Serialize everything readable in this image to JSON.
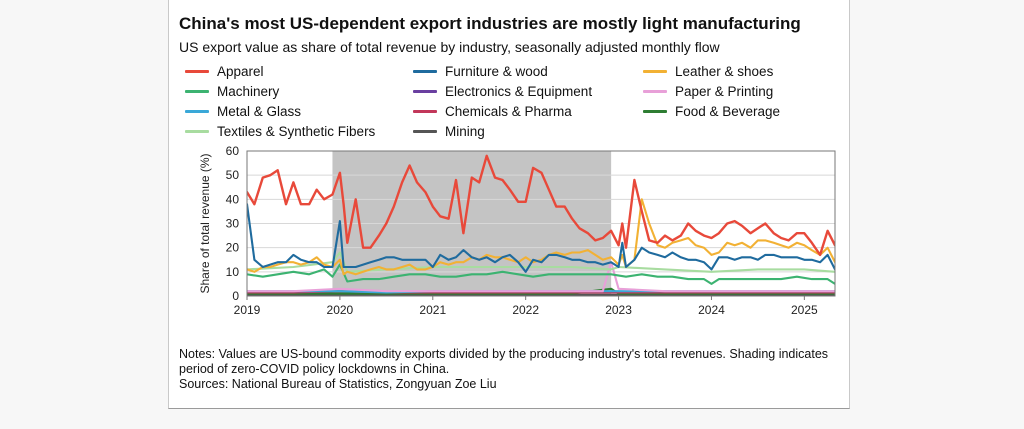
{
  "header": {
    "title": "China's most US-dependent export industries are mostly light manufacturing",
    "subtitle": "US export value as share of total revenue by industry, seasonally adjusted monthly flow"
  },
  "notes": {
    "line1": "Notes: Values are US-bound commodity exports divided by the producing industry's total revenues. Shading indicates period of zero-COVID policy lockdowns in China.",
    "line2": "Sources: National Bureau of Statistics, Zongyuan Zoe Liu"
  },
  "chart_data": {
    "type": "line",
    "title": "China's most US-dependent export industries are mostly light manufacturing",
    "subtitle": "US export value as share of total revenue by industry, seasonally adjusted monthly flow",
    "xlabel": "",
    "ylabel": "Share of total revenue (%)",
    "ylim": [
      0,
      60
    ],
    "yticks": [
      0,
      10,
      20,
      30,
      40,
      50,
      60
    ],
    "xlim": [
      2019.0,
      2025.33
    ],
    "xticks": [
      "2019",
      "2020",
      "2021",
      "2022",
      "2023",
      "2024",
      "2025"
    ],
    "grid": "horizontal",
    "legend_position": "top",
    "shaded_period": {
      "start": 2019.92,
      "end": 2022.92
    },
    "series": [
      {
        "name": "Apparel",
        "color": "#e8493a",
        "x": [
          2019.0,
          2019.08,
          2019.17,
          2019.25,
          2019.33,
          2019.42,
          2019.5,
          2019.58,
          2019.67,
          2019.75,
          2019.83,
          2019.92,
          2020.0,
          2020.04,
          2020.08,
          2020.17,
          2020.25,
          2020.33,
          2020.42,
          2020.5,
          2020.58,
          2020.67,
          2020.75,
          2020.83,
          2020.92,
          2021.0,
          2021.08,
          2021.17,
          2021.25,
          2021.33,
          2021.42,
          2021.5,
          2021.58,
          2021.67,
          2021.75,
          2021.83,
          2021.92,
          2022.0,
          2022.08,
          2022.17,
          2022.25,
          2022.33,
          2022.42,
          2022.5,
          2022.58,
          2022.67,
          2022.75,
          2022.83,
          2022.92,
          2023.0,
          2023.04,
          2023.08,
          2023.17,
          2023.25,
          2023.33,
          2023.42,
          2023.5,
          2023.58,
          2023.67,
          2023.75,
          2023.83,
          2023.92,
          2024.0,
          2024.08,
          2024.17,
          2024.25,
          2024.33,
          2024.42,
          2024.5,
          2024.58,
          2024.67,
          2024.75,
          2024.83,
          2024.92,
          2025.0,
          2025.08,
          2025.17,
          2025.25,
          2025.33
        ],
        "y": [
          43,
          38,
          49,
          50,
          52,
          38,
          47,
          38,
          38,
          44,
          40,
          42,
          51,
          38,
          22,
          40,
          20,
          20,
          25,
          30,
          37,
          47,
          54,
          47,
          43,
          37,
          33,
          32,
          48,
          26,
          49,
          47,
          58,
          49,
          48,
          44,
          39,
          39,
          53,
          51,
          44,
          37,
          37,
          32,
          28,
          26,
          23,
          24,
          27,
          21,
          30,
          20,
          48,
          35,
          23,
          22,
          25,
          23,
          25,
          30,
          27,
          25,
          24,
          26,
          30,
          31,
          29,
          26,
          28,
          30,
          26,
          24,
          23,
          26,
          26,
          22,
          17,
          27,
          21
        ]
      },
      {
        "name": "Furniture & wood",
        "color": "#1f6b9e",
        "x": [
          2019.0,
          2019.08,
          2019.17,
          2019.25,
          2019.33,
          2019.42,
          2019.5,
          2019.58,
          2019.67,
          2019.75,
          2019.83,
          2019.92,
          2020.0,
          2020.04,
          2020.08,
          2020.17,
          2020.25,
          2020.33,
          2020.42,
          2020.5,
          2020.58,
          2020.67,
          2020.75,
          2020.83,
          2020.92,
          2021.0,
          2021.08,
          2021.17,
          2021.25,
          2021.33,
          2021.42,
          2021.5,
          2021.58,
          2021.67,
          2021.75,
          2021.83,
          2021.92,
          2022.0,
          2022.08,
          2022.17,
          2022.25,
          2022.33,
          2022.42,
          2022.5,
          2022.58,
          2022.67,
          2022.75,
          2022.83,
          2022.92,
          2023.0,
          2023.04,
          2023.08,
          2023.17,
          2023.25,
          2023.33,
          2023.42,
          2023.5,
          2023.58,
          2023.67,
          2023.75,
          2023.83,
          2023.92,
          2024.0,
          2024.08,
          2024.17,
          2024.25,
          2024.33,
          2024.42,
          2024.5,
          2024.58,
          2024.67,
          2024.75,
          2024.83,
          2024.92,
          2025.0,
          2025.08,
          2025.17,
          2025.25,
          2025.33
        ],
        "y": [
          38,
          15,
          12,
          13,
          14,
          14,
          17,
          15,
          14,
          14,
          12,
          12,
          31,
          12,
          12,
          12,
          13,
          14,
          15,
          16,
          16,
          15,
          15,
          15,
          15,
          12,
          17,
          15,
          16,
          19,
          16,
          15,
          16,
          14,
          16,
          17,
          14,
          10,
          15,
          14,
          17,
          17,
          16,
          15,
          15,
          14,
          14,
          13,
          14,
          12,
          22,
          12,
          15,
          20,
          18,
          17,
          16,
          18,
          16,
          15,
          15,
          14,
          11,
          16,
          16,
          15,
          16,
          16,
          15,
          17,
          17,
          16,
          16,
          16,
          15,
          15,
          14,
          17,
          11
        ]
      },
      {
        "name": "Leather & shoes",
        "color": "#f2b134",
        "x": [
          2019.0,
          2019.08,
          2019.17,
          2019.25,
          2019.33,
          2019.42,
          2019.5,
          2019.58,
          2019.67,
          2019.75,
          2019.83,
          2019.92,
          2020.0,
          2020.04,
          2020.08,
          2020.17,
          2020.25,
          2020.33,
          2020.42,
          2020.5,
          2020.58,
          2020.67,
          2020.75,
          2020.83,
          2020.92,
          2021.0,
          2021.08,
          2021.17,
          2021.25,
          2021.33,
          2021.42,
          2021.5,
          2021.58,
          2021.67,
          2021.75,
          2021.83,
          2021.92,
          2022.0,
          2022.08,
          2022.17,
          2022.25,
          2022.33,
          2022.42,
          2022.5,
          2022.58,
          2022.67,
          2022.75,
          2022.83,
          2022.92,
          2023.0,
          2023.04,
          2023.08,
          2023.17,
          2023.25,
          2023.33,
          2023.42,
          2023.5,
          2023.58,
          2023.67,
          2023.75,
          2023.83,
          2023.92,
          2024.0,
          2024.08,
          2024.17,
          2024.25,
          2024.33,
          2024.42,
          2024.5,
          2024.58,
          2024.67,
          2024.75,
          2024.83,
          2024.92,
          2025.0,
          2025.08,
          2025.17,
          2025.25,
          2025.33
        ],
        "y": [
          11,
          10,
          12,
          12,
          13,
          14,
          14,
          13,
          14,
          16,
          13,
          12,
          15,
          9,
          10,
          9,
          10,
          11,
          12,
          11,
          11,
          12,
          13,
          11,
          11,
          12,
          14,
          13,
          14,
          14,
          16,
          15,
          17,
          16,
          16,
          15,
          14,
          16,
          14,
          15,
          17,
          18,
          17,
          18,
          18,
          19,
          17,
          15,
          16,
          13,
          17,
          12,
          15,
          40,
          30,
          21,
          20,
          22,
          23,
          24,
          21,
          20,
          17,
          18,
          22,
          21,
          22,
          20,
          23,
          23,
          22,
          21,
          20,
          22,
          21,
          19,
          17,
          20,
          14
        ]
      },
      {
        "name": "Machinery",
        "color": "#3cb371",
        "x": [
          2019.0,
          2019.17,
          2019.33,
          2019.5,
          2019.67,
          2019.83,
          2019.92,
          2020.0,
          2020.08,
          2020.25,
          2020.42,
          2020.58,
          2020.75,
          2020.92,
          2021.08,
          2021.25,
          2021.42,
          2021.58,
          2021.75,
          2021.92,
          2022.08,
          2022.25,
          2022.42,
          2022.58,
          2022.75,
          2022.92,
          2023.08,
          2023.25,
          2023.42,
          2023.58,
          2023.75,
          2023.92,
          2024.0,
          2024.08,
          2024.25,
          2024.42,
          2024.58,
          2024.75,
          2024.92,
          2025.08,
          2025.25,
          2025.33
        ],
        "y": [
          9,
          8,
          9,
          10,
          9,
          11,
          8,
          13,
          6,
          7,
          7,
          8,
          9,
          9,
          8,
          8,
          9,
          9,
          10,
          9,
          8,
          9,
          9,
          9,
          9,
          9,
          8,
          9,
          8,
          8,
          7,
          7,
          5,
          7,
          7,
          7,
          7,
          7,
          8,
          7,
          7,
          5
        ]
      },
      {
        "name": "Electronics & Equipment",
        "color": "#6a3fa0",
        "x": [
          2019.0,
          2019.5,
          2019.92,
          2020.0,
          2020.08,
          2020.5,
          2021.0,
          2021.5,
          2022.0,
          2022.5,
          2022.92,
          2023.0,
          2023.5,
          2024.0,
          2024.5,
          2025.0,
          2025.33
        ],
        "y": [
          3,
          2.5,
          2,
          5,
          2,
          2.5,
          3,
          2.5,
          3,
          2.5,
          2.5,
          3,
          2.5,
          2.5,
          2.5,
          2.5,
          2
        ]
      },
      {
        "name": "Paper & Printing",
        "color": "#e8a0d8",
        "x": [
          2019.0,
          2019.5,
          2020.0,
          2020.5,
          2021.0,
          2021.5,
          2022.0,
          2022.5,
          2022.83,
          2022.92,
          2023.0,
          2023.5,
          2024.0,
          2024.5,
          2025.0,
          2025.33
        ],
        "y": [
          2,
          2,
          3,
          2,
          2,
          2,
          2,
          2,
          2,
          14,
          3,
          2,
          2,
          2,
          2,
          2
        ]
      },
      {
        "name": "Metal & Glass",
        "color": "#3aa8d8",
        "x": [
          2019.0,
          2019.5,
          2020.0,
          2020.5,
          2021.0,
          2021.5,
          2022.0,
          2022.5,
          2023.0,
          2023.5,
          2024.0,
          2024.5,
          2025.0,
          2025.33
        ],
        "y": [
          2,
          2,
          2,
          1.5,
          2,
          2,
          2,
          2,
          2,
          2,
          2,
          2,
          2,
          2
        ]
      },
      {
        "name": "Chemicals & Pharma",
        "color": "#c2375a",
        "x": [
          2019.0,
          2019.5,
          2020.0,
          2020.5,
          2021.0,
          2021.5,
          2022.0,
          2022.5,
          2023.0,
          2023.5,
          2024.0,
          2024.5,
          2025.0,
          2025.33
        ],
        "y": [
          1.5,
          1.5,
          2,
          1.5,
          1.5,
          1.5,
          1.5,
          1.5,
          1.5,
          1.5,
          1.5,
          1.5,
          1.5,
          1.5
        ]
      },
      {
        "name": "Food & Beverage",
        "color": "#2e7d32",
        "x": [
          2019.0,
          2019.5,
          2020.0,
          2020.5,
          2021.0,
          2021.5,
          2022.0,
          2022.5,
          2022.92,
          2023.0,
          2023.5,
          2024.0,
          2024.5,
          2025.0,
          2025.33
        ],
        "y": [
          1,
          1,
          1,
          1,
          1,
          1,
          1,
          1,
          3,
          1,
          1,
          1,
          1,
          1,
          1
        ]
      },
      {
        "name": "Textiles & Synthetic Fibers",
        "color": "#a8dca0",
        "x": [
          2019.0,
          2019.5,
          2019.92,
          2020.0,
          2020.08,
          2020.5,
          2021.0,
          2021.5,
          2022.0,
          2022.5,
          2022.92,
          2023.0,
          2023.5,
          2024.0,
          2024.5,
          2025.0,
          2025.33
        ],
        "y": [
          11,
          12,
          14,
          18,
          10,
          11,
          12,
          12,
          12,
          12,
          11,
          12,
          11,
          10,
          11,
          11,
          10
        ]
      },
      {
        "name": "Mining",
        "color": "#555555",
        "x": [
          2019.0,
          2019.5,
          2020.0,
          2020.5,
          2021.0,
          2021.5,
          2022.0,
          2022.5,
          2023.0,
          2023.5,
          2024.0,
          2024.5,
          2025.0,
          2025.33
        ],
        "y": [
          0.5,
          0.5,
          0.5,
          0.5,
          0.5,
          0.5,
          0.5,
          0.5,
          0.5,
          0.5,
          0.5,
          0.5,
          0.5,
          0.5
        ]
      }
    ]
  }
}
